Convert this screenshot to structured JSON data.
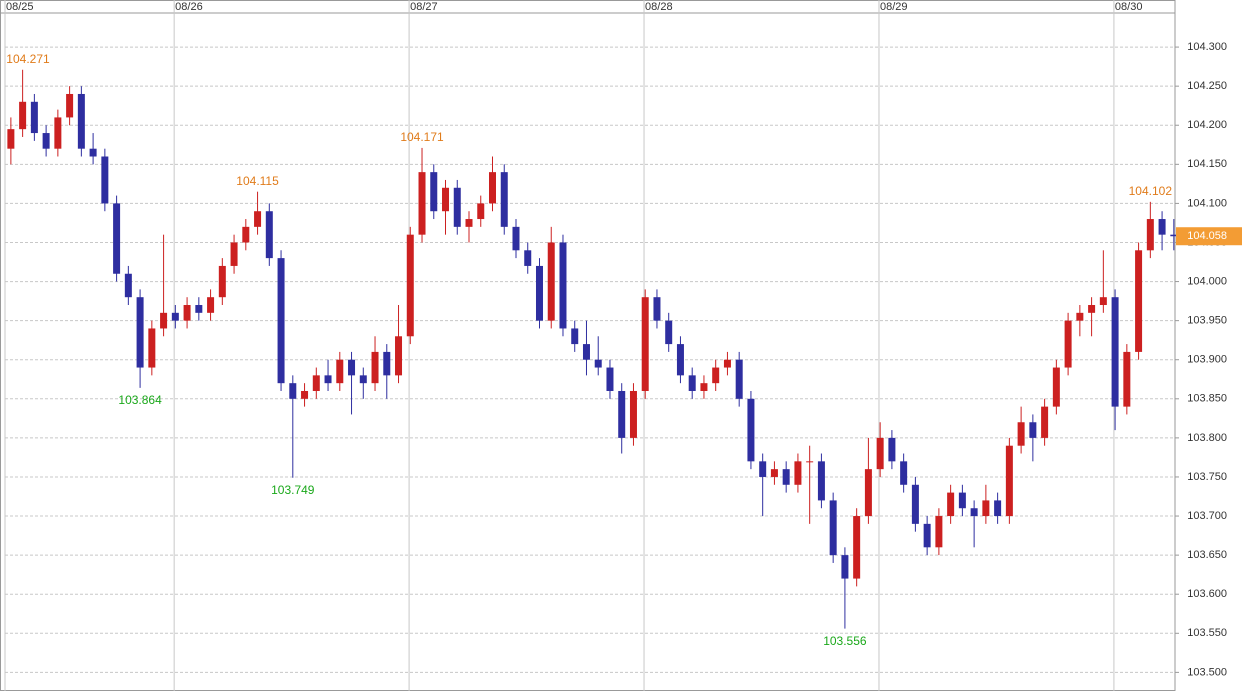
{
  "chart_data": {
    "type": "candlestick",
    "up_color": "#cc2020",
    "down_color": "#2e2ea0",
    "high_color": "#e07b1a",
    "low_color": "#1aa81a",
    "grid": true,
    "ylim": [
      103.48,
      104.35
    ],
    "yticks": [
      {
        "value": 104.3,
        "label": "104.300"
      },
      {
        "value": 104.25,
        "label": "104.250"
      },
      {
        "value": 104.2,
        "label": "104.200"
      },
      {
        "value": 104.15,
        "label": "104.150"
      },
      {
        "value": 104.1,
        "label": "104.100"
      },
      {
        "value": 104.05,
        "label": "104.050"
      },
      {
        "value": 104.0,
        "label": "104.000"
      },
      {
        "value": 103.95,
        "label": "103.950"
      },
      {
        "value": 103.9,
        "label": "103.900"
      },
      {
        "value": 103.85,
        "label": "103.850"
      },
      {
        "value": 103.8,
        "label": "103.800"
      },
      {
        "value": 103.75,
        "label": "103.750"
      },
      {
        "value": 103.7,
        "label": "103.700"
      },
      {
        "value": 103.65,
        "label": "103.650"
      },
      {
        "value": 103.6,
        "label": "103.600"
      },
      {
        "value": 103.55,
        "label": "103.550"
      },
      {
        "value": 103.5,
        "label": "103.500"
      }
    ],
    "xlim": [
      -0.5,
      99.1
    ],
    "xticks": [
      {
        "value": -0.5,
        "label": "08/25"
      },
      {
        "value": 13.9,
        "label": "08/26"
      },
      {
        "value": 33.9,
        "label": "08/27"
      },
      {
        "value": 53.9,
        "label": "08/28"
      },
      {
        "value": 73.9,
        "label": "08/29"
      },
      {
        "value": 93.9,
        "label": "08/30"
      }
    ],
    "annotations": [
      {
        "value": 104.271,
        "label": "104.271"
      },
      {
        "value": 104.115,
        "label": "104.115"
      },
      {
        "value": 104.171,
        "label": "104.171"
      },
      {
        "value": 103.864,
        "label": "103.864"
      },
      {
        "value": 103.749,
        "label": "103.749"
      },
      {
        "value": 103.556,
        "label": "103.556"
      },
      {
        "value": 104.102,
        "label": "104.102"
      }
    ],
    "current_price": {
      "value": 104.058,
      "label": "104.058"
    },
    "candles": [
      [
        104.17,
        104.21,
        104.15,
        104.195
      ],
      [
        104.195,
        104.271,
        104.185,
        104.23
      ],
      [
        104.23,
        104.24,
        104.18,
        104.19
      ],
      [
        104.19,
        104.2,
        104.16,
        104.17
      ],
      [
        104.17,
        104.22,
        104.16,
        104.21
      ],
      [
        104.21,
        104.25,
        104.2,
        104.24
      ],
      [
        104.24,
        104.25,
        104.16,
        104.17
      ],
      [
        104.17,
        104.19,
        104.15,
        104.16
      ],
      [
        104.16,
        104.17,
        104.09,
        104.1
      ],
      [
        104.1,
        104.11,
        104.0,
        104.01
      ],
      [
        104.01,
        104.02,
        103.97,
        103.98
      ],
      [
        103.98,
        103.99,
        103.864,
        103.89
      ],
      [
        103.89,
        103.95,
        103.88,
        103.94
      ],
      [
        103.94,
        104.06,
        103.93,
        103.96
      ],
      [
        103.96,
        103.97,
        103.94,
        103.95
      ],
      [
        103.95,
        103.98,
        103.94,
        103.97
      ],
      [
        103.97,
        103.98,
        103.95,
        103.96
      ],
      [
        103.96,
        103.99,
        103.95,
        103.98
      ],
      [
        103.98,
        104.03,
        103.97,
        104.02
      ],
      [
        104.02,
        104.06,
        104.01,
        104.05
      ],
      [
        104.05,
        104.08,
        104.04,
        104.07
      ],
      [
        104.07,
        104.115,
        104.06,
        104.09
      ],
      [
        104.09,
        104.1,
        104.02,
        104.03
      ],
      [
        104.03,
        104.04,
        103.86,
        103.87
      ],
      [
        103.87,
        103.88,
        103.749,
        103.85
      ],
      [
        103.85,
        103.87,
        103.84,
        103.86
      ],
      [
        103.86,
        103.89,
        103.85,
        103.88
      ],
      [
        103.88,
        103.9,
        103.86,
        103.87
      ],
      [
        103.87,
        103.91,
        103.86,
        103.9
      ],
      [
        103.9,
        103.91,
        103.83,
        103.88
      ],
      [
        103.88,
        103.89,
        103.85,
        103.87
      ],
      [
        103.87,
        103.93,
        103.86,
        103.91
      ],
      [
        103.91,
        103.92,
        103.85,
        103.88
      ],
      [
        103.88,
        103.97,
        103.87,
        103.93
      ],
      [
        103.93,
        104.07,
        103.92,
        104.06
      ],
      [
        104.06,
        104.171,
        104.05,
        104.14
      ],
      [
        104.14,
        104.15,
        104.08,
        104.09
      ],
      [
        104.09,
        104.13,
        104.06,
        104.12
      ],
      [
        104.12,
        104.13,
        104.06,
        104.07
      ],
      [
        104.07,
        104.09,
        104.05,
        104.08
      ],
      [
        104.08,
        104.11,
        104.07,
        104.1
      ],
      [
        104.1,
        104.16,
        104.09,
        104.14
      ],
      [
        104.14,
        104.15,
        104.06,
        104.07
      ],
      [
        104.07,
        104.08,
        104.03,
        104.04
      ],
      [
        104.04,
        104.05,
        104.01,
        104.02
      ],
      [
        104.02,
        104.03,
        103.94,
        103.95
      ],
      [
        103.95,
        104.07,
        103.94,
        104.05
      ],
      [
        104.05,
        104.06,
        103.93,
        103.94
      ],
      [
        103.94,
        103.95,
        103.91,
        103.92
      ],
      [
        103.92,
        103.95,
        103.88,
        103.9
      ],
      [
        103.9,
        103.93,
        103.88,
        103.89
      ],
      [
        103.89,
        103.9,
        103.85,
        103.86
      ],
      [
        103.86,
        103.87,
        103.78,
        103.8
      ],
      [
        103.8,
        103.87,
        103.79,
        103.86
      ],
      [
        103.86,
        103.99,
        103.85,
        103.98
      ],
      [
        103.98,
        103.99,
        103.94,
        103.95
      ],
      [
        103.95,
        103.96,
        103.91,
        103.92
      ],
      [
        103.92,
        103.93,
        103.87,
        103.88
      ],
      [
        103.88,
        103.89,
        103.85,
        103.86
      ],
      [
        103.86,
        103.88,
        103.85,
        103.87
      ],
      [
        103.87,
        103.9,
        103.86,
        103.89
      ],
      [
        103.89,
        103.91,
        103.88,
        103.9
      ],
      [
        103.9,
        103.91,
        103.84,
        103.85
      ],
      [
        103.85,
        103.86,
        103.76,
        103.77
      ],
      [
        103.77,
        103.78,
        103.7,
        103.75
      ],
      [
        103.75,
        103.77,
        103.74,
        103.76
      ],
      [
        103.76,
        103.77,
        103.73,
        103.74
      ],
      [
        103.74,
        103.78,
        103.73,
        103.77
      ],
      [
        103.77,
        103.79,
        103.69,
        103.77
      ],
      [
        103.77,
        103.78,
        103.71,
        103.72
      ],
      [
        103.72,
        103.73,
        103.64,
        103.65
      ],
      [
        103.65,
        103.66,
        103.556,
        103.62
      ],
      [
        103.62,
        103.71,
        103.61,
        103.7
      ],
      [
        103.7,
        103.8,
        103.69,
        103.76
      ],
      [
        103.76,
        103.82,
        103.75,
        103.8
      ],
      [
        103.8,
        103.81,
        103.76,
        103.77
      ],
      [
        103.77,
        103.78,
        103.73,
        103.74
      ],
      [
        103.74,
        103.75,
        103.68,
        103.69
      ],
      [
        103.69,
        103.7,
        103.65,
        103.66
      ],
      [
        103.66,
        103.71,
        103.65,
        103.7
      ],
      [
        103.7,
        103.74,
        103.69,
        103.73
      ],
      [
        103.73,
        103.74,
        103.7,
        103.71
      ],
      [
        103.71,
        103.72,
        103.66,
        103.7
      ],
      [
        103.7,
        103.74,
        103.69,
        103.72
      ],
      [
        103.72,
        103.73,
        103.69,
        103.7
      ],
      [
        103.7,
        103.8,
        103.69,
        103.79
      ],
      [
        103.79,
        103.84,
        103.78,
        103.82
      ],
      [
        103.82,
        103.83,
        103.77,
        103.8
      ],
      [
        103.8,
        103.85,
        103.79,
        103.84
      ],
      [
        103.84,
        103.9,
        103.83,
        103.89
      ],
      [
        103.89,
        103.96,
        103.88,
        103.95
      ],
      [
        103.95,
        103.97,
        103.93,
        103.96
      ],
      [
        103.96,
        103.98,
        103.93,
        103.97
      ],
      [
        103.97,
        104.04,
        103.96,
        103.98
      ],
      [
        103.98,
        103.99,
        103.81,
        103.84
      ],
      [
        103.84,
        103.92,
        103.83,
        103.91
      ],
      [
        103.91,
        104.05,
        103.9,
        104.04
      ],
      [
        104.04,
        104.102,
        104.03,
        104.08
      ],
      [
        104.08,
        104.09,
        104.04,
        104.06
      ],
      [
        104.06,
        104.08,
        104.04,
        104.058
      ]
    ]
  }
}
